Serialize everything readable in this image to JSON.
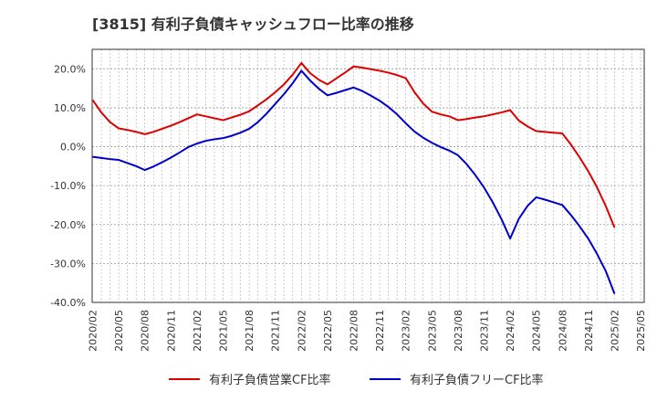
{
  "chart_data": {
    "type": "line",
    "title": "[3815]  有利子負債キャッシュフロー比率の推移",
    "xlabel": "",
    "ylabel": "",
    "ylim": [
      -40,
      25
    ],
    "y_ticks": [
      20,
      10,
      0,
      -10,
      -20,
      -30,
      -40
    ],
    "y_tick_labels": [
      "20.0%",
      "10.0%",
      "0.0%",
      "-10.0%",
      "-20.0%",
      "-30.0%",
      "-40.0%"
    ],
    "x_tick_labels": [
      "2020/02",
      "2020/05",
      "2020/08",
      "2020/11",
      "2021/02",
      "2021/05",
      "2021/08",
      "2021/11",
      "2022/02",
      "2022/05",
      "2022/08",
      "2022/11",
      "2023/02",
      "2023/05",
      "2023/08",
      "2023/11",
      "2024/02",
      "2024/05",
      "2024/08",
      "2024/11",
      "2025/02",
      "2025/05"
    ],
    "grid": true,
    "legend": "bottom",
    "x": [
      "2020/02",
      "2020/03",
      "2020/04",
      "2020/05",
      "2020/06",
      "2020/07",
      "2020/08",
      "2020/09",
      "2020/10",
      "2020/11",
      "2020/12",
      "2021/01",
      "2021/02",
      "2021/03",
      "2021/04",
      "2021/05",
      "2021/06",
      "2021/07",
      "2021/08",
      "2021/09",
      "2021/10",
      "2021/11",
      "2021/12",
      "2022/01",
      "2022/02",
      "2022/03",
      "2022/04",
      "2022/05",
      "2022/06",
      "2022/07",
      "2022/08",
      "2022/09",
      "2022/10",
      "2022/11",
      "2022/12",
      "2023/01",
      "2023/02",
      "2023/03",
      "2023/04",
      "2023/05",
      "2023/06",
      "2023/07",
      "2023/08",
      "2023/09",
      "2023/10",
      "2023/11",
      "2023/12",
      "2024/01",
      "2024/02",
      "2024/03",
      "2024/04",
      "2024/05",
      "2024/06",
      "2024/07",
      "2024/08",
      "2024/09",
      "2024/10",
      "2024/11",
      "2024/12",
      "2025/01",
      "2025/02"
    ],
    "series": [
      {
        "name": "有利子負債営業CF比率",
        "color": "#dd0000",
        "values": [
          12.0,
          8.8,
          6.3,
          4.7,
          4.3,
          3.8,
          3.2,
          3.8,
          4.6,
          5.4,
          6.3,
          7.3,
          8.3,
          7.8,
          7.3,
          6.8,
          7.5,
          8.2,
          9.1,
          10.6,
          12.2,
          14.0,
          16.0,
          18.5,
          21.5,
          18.9,
          17.2,
          16.0,
          17.5,
          19.0,
          20.6,
          20.3,
          19.9,
          19.5,
          19.0,
          18.4,
          17.6,
          14.0,
          11.1,
          9.0,
          8.3,
          7.8,
          6.8,
          7.1,
          7.5,
          7.8,
          8.3,
          8.8,
          9.4,
          6.7,
          5.2,
          4.0,
          3.8,
          3.6,
          3.4,
          0.5,
          -2.8,
          -6.4,
          -10.5,
          -15.3,
          -20.8
        ]
      },
      {
        "name": "有利子負債フリーCF比率",
        "color": "#0000cc",
        "values": [
          -2.6,
          -2.9,
          -3.2,
          -3.4,
          -4.2,
          -5.0,
          -6.0,
          -5.1,
          -4.0,
          -2.8,
          -1.5,
          -0.1,
          0.8,
          1.5,
          1.9,
          2.2,
          2.8,
          3.6,
          4.6,
          6.3,
          8.5,
          11.0,
          13.5,
          16.3,
          19.5,
          17.0,
          14.9,
          13.2,
          13.8,
          14.5,
          15.2,
          14.3,
          13.1,
          11.8,
          10.2,
          8.3,
          6.0,
          3.9,
          2.3,
          1.0,
          -0.1,
          -1.0,
          -2.2,
          -4.5,
          -7.3,
          -10.5,
          -14.3,
          -18.6,
          -23.6,
          -18.5,
          -15.2,
          -13.0,
          -13.6,
          -14.3,
          -15.0,
          -17.6,
          -20.5,
          -23.7,
          -27.6,
          -32.0,
          -37.8
        ]
      }
    ]
  }
}
